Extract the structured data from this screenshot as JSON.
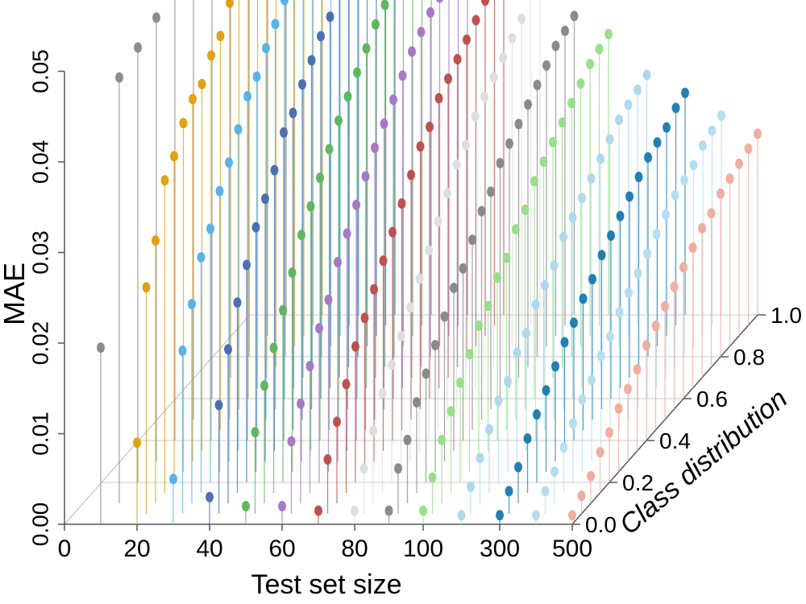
{
  "chart_data": {
    "type": "scatter",
    "subtype": "3d-lollipop",
    "title": "",
    "xlabel": "Test set size",
    "ylabel": "Class distribution",
    "zlabel": "MAE",
    "x_ticks": [
      "0",
      "20",
      "40",
      "60",
      "80",
      "100",
      "300",
      "500"
    ],
    "y_ticks": [
      "0.0",
      "0.2",
      "0.4",
      "0.6",
      "0.8",
      "1.0"
    ],
    "z_ticks": [
      "0.00",
      "0.01",
      "0.02",
      "0.03",
      "0.04",
      "0.05"
    ],
    "zlim": [
      0,
      0.05
    ],
    "ylim": [
      0,
      1
    ],
    "grid": true,
    "series": [
      {
        "x": 10,
        "color": "#8c8c8c",
        "points": [
          [
            0.0,
            0.0195
          ],
          [
            0.1,
            0.047
          ],
          [
            0.2,
            0.048
          ],
          [
            0.3,
            0.049
          ],
          [
            0.4,
            0.0515
          ],
          [
            0.5,
            0.0505
          ],
          [
            0.6,
            0.053
          ],
          [
            0.7,
            0.055
          ],
          [
            0.8,
            0.0565
          ],
          [
            0.9,
            0.0585
          ],
          [
            1.0,
            0.0575
          ]
        ]
      },
      {
        "x": 20,
        "color": "#e5a00d",
        "points": [
          [
            0.0,
            0.009
          ],
          [
            0.05,
            0.025
          ],
          [
            0.1,
            0.029
          ],
          [
            0.15,
            0.0345
          ],
          [
            0.2,
            0.036
          ],
          [
            0.25,
            0.0385
          ],
          [
            0.3,
            0.04
          ],
          [
            0.35,
            0.0405
          ],
          [
            0.4,
            0.0425
          ],
          [
            0.45,
            0.0435
          ],
          [
            0.5,
            0.046
          ],
          [
            0.55,
            0.0465
          ],
          [
            0.6,
            0.0485
          ],
          [
            0.65,
            0.049
          ],
          [
            0.7,
            0.0485
          ],
          [
            0.75,
            0.0495
          ],
          [
            0.8,
            0.049
          ],
          [
            0.85,
            0.0475
          ],
          [
            0.9,
            0.047
          ],
          [
            0.95,
            0.0445
          ],
          [
            1.0,
            0.045
          ]
        ]
      },
      {
        "x": 30,
        "color": "#56b4e9",
        "points": [
          [
            0.0,
            0.005
          ],
          [
            0.05,
            0.018
          ],
          [
            0.1,
            0.022
          ],
          [
            0.15,
            0.026
          ],
          [
            0.2,
            0.028
          ],
          [
            0.25,
            0.031
          ],
          [
            0.3,
            0.033
          ],
          [
            0.35,
            0.0355
          ],
          [
            0.4,
            0.038
          ],
          [
            0.45,
            0.039
          ],
          [
            0.5,
            0.041
          ],
          [
            0.55,
            0.0425
          ],
          [
            0.6,
            0.044
          ],
          [
            0.65,
            0.0445
          ],
          [
            0.7,
            0.046
          ],
          [
            0.75,
            0.0465
          ],
          [
            0.8,
            0.047
          ],
          [
            0.85,
            0.0455
          ],
          [
            0.9,
            0.046
          ],
          [
            0.95,
            0.045
          ],
          [
            1.0,
            0.044
          ]
        ]
      },
      {
        "x": 40,
        "color": "#4a6fb5",
        "points": [
          [
            0.0,
            0.003
          ],
          [
            0.05,
            0.012
          ],
          [
            0.1,
            0.017
          ],
          [
            0.15,
            0.021
          ],
          [
            0.2,
            0.024
          ],
          [
            0.25,
            0.027
          ],
          [
            0.3,
            0.029
          ],
          [
            0.35,
            0.031
          ],
          [
            0.4,
            0.034
          ],
          [
            0.45,
            0.035
          ],
          [
            0.5,
            0.037
          ],
          [
            0.55,
            0.0385
          ],
          [
            0.6,
            0.04
          ],
          [
            0.65,
            0.041
          ],
          [
            0.7,
            0.0425
          ],
          [
            0.75,
            0.043
          ],
          [
            0.8,
            0.044
          ],
          [
            0.85,
            0.043
          ],
          [
            0.9,
            0.0435
          ],
          [
            0.95,
            0.0475
          ],
          [
            1.0,
            0.0445
          ]
        ]
      },
      {
        "x": 50,
        "color": "#5cb85c",
        "points": [
          [
            0.0,
            0.002
          ],
          [
            0.05,
            0.009
          ],
          [
            0.1,
            0.013
          ],
          [
            0.15,
            0.016
          ],
          [
            0.2,
            0.019
          ],
          [
            0.25,
            0.022
          ],
          [
            0.3,
            0.025
          ],
          [
            0.35,
            0.027
          ],
          [
            0.4,
            0.029
          ],
          [
            0.45,
            0.031
          ],
          [
            0.5,
            0.033
          ],
          [
            0.55,
            0.0345
          ],
          [
            0.6,
            0.036
          ],
          [
            0.65,
            0.0375
          ],
          [
            0.7,
            0.039
          ],
          [
            0.75,
            0.04
          ],
          [
            0.8,
            0.041
          ],
          [
            0.85,
            0.0415
          ],
          [
            0.9,
            0.042
          ],
          [
            0.95,
            0.0415
          ],
          [
            1.0,
            0.041
          ]
        ]
      },
      {
        "x": 60,
        "color": "#a678c7",
        "points": [
          [
            0.0,
            0.002
          ],
          [
            0.05,
            0.008
          ],
          [
            0.1,
            0.011
          ],
          [
            0.15,
            0.014
          ],
          [
            0.2,
            0.017
          ],
          [
            0.25,
            0.019
          ],
          [
            0.3,
            0.022
          ],
          [
            0.35,
            0.024
          ],
          [
            0.4,
            0.026
          ],
          [
            0.45,
            0.028
          ],
          [
            0.5,
            0.03
          ],
          [
            0.55,
            0.0315
          ],
          [
            0.6,
            0.033
          ],
          [
            0.65,
            0.0345
          ],
          [
            0.7,
            0.036
          ],
          [
            0.75,
            0.037
          ],
          [
            0.8,
            0.038
          ],
          [
            0.85,
            0.0385
          ],
          [
            0.9,
            0.039
          ],
          [
            0.95,
            0.0395
          ],
          [
            1.0,
            0.0385
          ]
        ]
      },
      {
        "x": 70,
        "color": "#c0504d",
        "points": [
          [
            0.0,
            0.0015
          ],
          [
            0.05,
            0.006
          ],
          [
            0.1,
            0.009
          ],
          [
            0.15,
            0.012
          ],
          [
            0.2,
            0.015
          ],
          [
            0.25,
            0.017
          ],
          [
            0.3,
            0.019
          ],
          [
            0.35,
            0.021
          ],
          [
            0.4,
            0.023
          ],
          [
            0.45,
            0.025
          ],
          [
            0.5,
            0.027
          ],
          [
            0.55,
            0.029
          ],
          [
            0.6,
            0.03
          ],
          [
            0.65,
            0.032
          ],
          [
            0.7,
            0.033
          ],
          [
            0.75,
            0.034
          ],
          [
            0.8,
            0.035
          ],
          [
            0.85,
            0.036
          ],
          [
            0.9,
            0.037
          ],
          [
            0.95,
            0.0365
          ],
          [
            1.0,
            0.036
          ]
        ]
      },
      {
        "x": 80,
        "color": "#dedede",
        "points": [
          [
            0.0,
            0.0015
          ],
          [
            0.05,
            0.005
          ],
          [
            0.1,
            0.008
          ],
          [
            0.15,
            0.011
          ],
          [
            0.2,
            0.013
          ],
          [
            0.25,
            0.015
          ],
          [
            0.3,
            0.017
          ],
          [
            0.35,
            0.019
          ],
          [
            0.4,
            0.021
          ],
          [
            0.45,
            0.023
          ],
          [
            0.5,
            0.025
          ],
          [
            0.55,
            0.027
          ],
          [
            0.6,
            0.028
          ],
          [
            0.65,
            0.03
          ],
          [
            0.7,
            0.031
          ],
          [
            0.75,
            0.032
          ],
          [
            0.8,
            0.033
          ],
          [
            0.85,
            0.034
          ],
          [
            0.9,
            0.035
          ],
          [
            0.95,
            0.037
          ],
          [
            1.0,
            0.038
          ]
        ]
      },
      {
        "x": 90,
        "color": "#8a8a8a",
        "points": [
          [
            0.0,
            0.0015
          ],
          [
            0.05,
            0.005
          ],
          [
            0.1,
            0.007
          ],
          [
            0.15,
            0.01
          ],
          [
            0.2,
            0.012
          ],
          [
            0.25,
            0.014
          ],
          [
            0.3,
            0.016
          ],
          [
            0.35,
            0.018
          ],
          [
            0.4,
            0.019
          ],
          [
            0.45,
            0.021
          ],
          [
            0.5,
            0.023
          ],
          [
            0.55,
            0.024
          ],
          [
            0.6,
            0.026
          ],
          [
            0.65,
            0.027
          ],
          [
            0.7,
            0.028
          ],
          [
            0.75,
            0.029
          ],
          [
            0.8,
            0.03
          ],
          [
            0.85,
            0.031
          ],
          [
            0.9,
            0.032
          ],
          [
            0.95,
            0.0325
          ],
          [
            1.0,
            0.033
          ]
        ]
      },
      {
        "x": 100,
        "color": "#98df8a",
        "points": [
          [
            0.0,
            0.0015
          ],
          [
            0.05,
            0.004
          ],
          [
            0.1,
            0.007
          ],
          [
            0.15,
            0.009
          ],
          [
            0.2,
            0.011
          ],
          [
            0.25,
            0.013
          ],
          [
            0.3,
            0.015
          ],
          [
            0.35,
            0.016
          ],
          [
            0.4,
            0.018
          ],
          [
            0.45,
            0.019
          ],
          [
            0.5,
            0.021
          ],
          [
            0.55,
            0.022
          ],
          [
            0.6,
            0.024
          ],
          [
            0.65,
            0.025
          ],
          [
            0.7,
            0.026
          ],
          [
            0.75,
            0.027
          ],
          [
            0.8,
            0.028
          ],
          [
            0.85,
            0.029
          ],
          [
            0.9,
            0.03
          ],
          [
            0.95,
            0.0305
          ],
          [
            1.0,
            0.031
          ]
        ]
      },
      {
        "x": 200,
        "color": "#aed8ec",
        "points": [
          [
            0.0,
            0.001
          ],
          [
            0.05,
            0.003
          ],
          [
            0.1,
            0.005
          ],
          [
            0.15,
            0.007
          ],
          [
            0.2,
            0.009
          ],
          [
            0.25,
            0.01
          ],
          [
            0.3,
            0.012
          ],
          [
            0.35,
            0.013
          ],
          [
            0.4,
            0.015
          ],
          [
            0.45,
            0.016
          ],
          [
            0.5,
            0.017
          ],
          [
            0.55,
            0.019
          ],
          [
            0.6,
            0.02
          ],
          [
            0.65,
            0.021
          ],
          [
            0.7,
            0.022
          ],
          [
            0.75,
            0.023
          ],
          [
            0.8,
            0.024
          ],
          [
            0.85,
            0.025
          ],
          [
            0.9,
            0.0255
          ],
          [
            0.95,
            0.026
          ],
          [
            1.0,
            0.0265
          ]
        ]
      },
      {
        "x": 300,
        "color": "#1f80b8",
        "points": [
          [
            0.0,
            0.001
          ],
          [
            0.05,
            0.0025
          ],
          [
            0.1,
            0.004
          ],
          [
            0.15,
            0.006
          ],
          [
            0.2,
            0.0075
          ],
          [
            0.25,
            0.009
          ],
          [
            0.3,
            0.0105
          ],
          [
            0.35,
            0.012
          ],
          [
            0.4,
            0.013
          ],
          [
            0.45,
            0.0145
          ],
          [
            0.5,
            0.0155
          ],
          [
            0.55,
            0.017
          ],
          [
            0.6,
            0.018
          ],
          [
            0.65,
            0.019
          ],
          [
            0.7,
            0.02
          ],
          [
            0.75,
            0.021
          ],
          [
            0.8,
            0.022
          ],
          [
            0.85,
            0.0225
          ],
          [
            0.9,
            0.023
          ],
          [
            0.95,
            0.024
          ],
          [
            1.0,
            0.0245
          ]
        ]
      },
      {
        "x": 400,
        "color": "#b3dff0",
        "points": [
          [
            0.0,
            0.001
          ],
          [
            0.05,
            0.0025
          ],
          [
            0.1,
            0.0035
          ],
          [
            0.15,
            0.005
          ],
          [
            0.2,
            0.0065
          ],
          [
            0.25,
            0.008
          ],
          [
            0.3,
            0.009
          ],
          [
            0.35,
            0.0105
          ],
          [
            0.4,
            0.0115
          ],
          [
            0.45,
            0.013
          ],
          [
            0.5,
            0.014
          ],
          [
            0.55,
            0.015
          ],
          [
            0.6,
            0.016
          ],
          [
            0.65,
            0.017
          ],
          [
            0.7,
            0.018
          ],
          [
            0.75,
            0.019
          ],
          [
            0.8,
            0.0195
          ],
          [
            0.85,
            0.02
          ],
          [
            0.9,
            0.021
          ],
          [
            0.95,
            0.0215
          ],
          [
            1.0,
            0.022
          ]
        ]
      },
      {
        "x": 500,
        "color": "#f2aca0",
        "points": [
          [
            0.0,
            0.001
          ],
          [
            0.05,
            0.002
          ],
          [
            0.1,
            0.003
          ],
          [
            0.15,
            0.0045
          ],
          [
            0.2,
            0.0055
          ],
          [
            0.25,
            0.007
          ],
          [
            0.3,
            0.008
          ],
          [
            0.35,
            0.009
          ],
          [
            0.4,
            0.0105
          ],
          [
            0.45,
            0.0115
          ],
          [
            0.5,
            0.0125
          ],
          [
            0.55,
            0.0135
          ],
          [
            0.6,
            0.0145
          ],
          [
            0.65,
            0.0155
          ],
          [
            0.7,
            0.0165
          ],
          [
            0.75,
            0.017
          ],
          [
            0.8,
            0.018
          ],
          [
            0.85,
            0.0185
          ],
          [
            0.9,
            0.019
          ],
          [
            0.95,
            0.0195
          ],
          [
            1.0,
            0.02
          ]
        ]
      }
    ]
  }
}
